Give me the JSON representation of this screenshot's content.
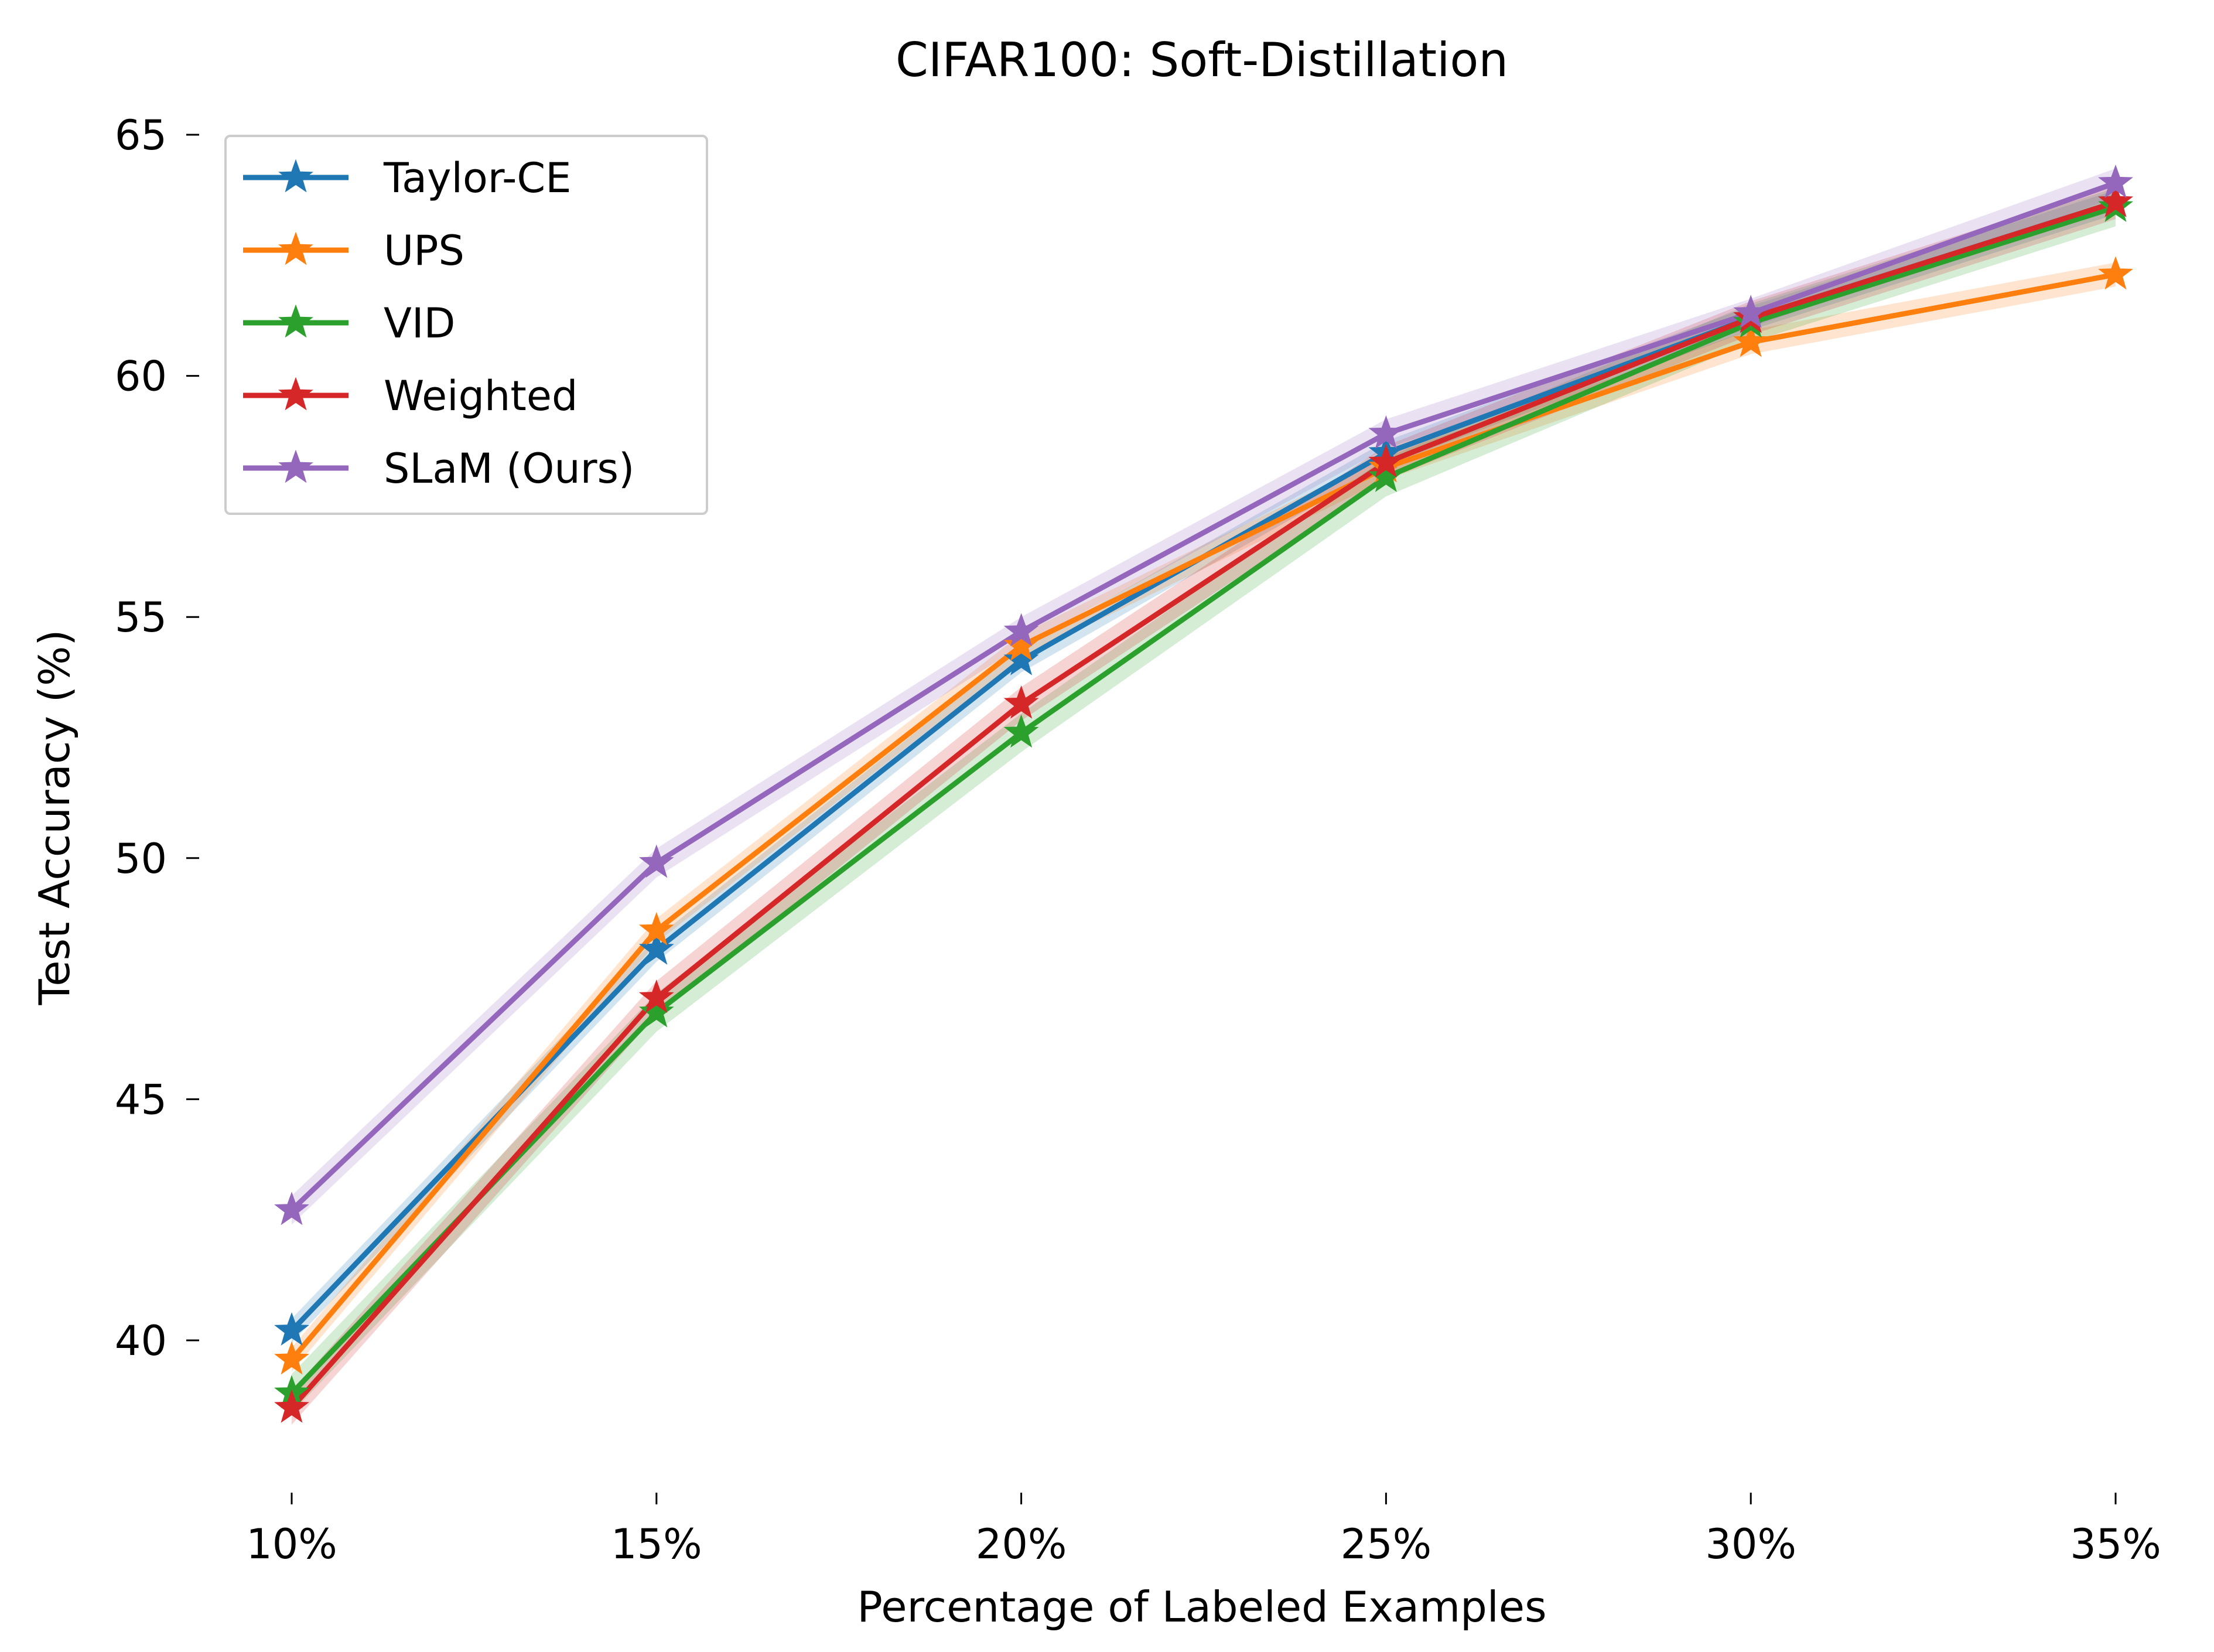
{
  "chart_data": {
    "type": "line",
    "title": "CIFAR100: Soft-Distillation",
    "xlabel": "Percentage of Labeled Examples",
    "ylabel": "Test Accuracy (%)",
    "categories": [
      "10%",
      "15%",
      "20%",
      "25%",
      "30%",
      "35%"
    ],
    "yticks": [
      40,
      45,
      50,
      55,
      60,
      65
    ],
    "ylim": [
      37.0,
      65.7
    ],
    "grid": false,
    "legend_position": "top-left",
    "series": [
      {
        "name": "Taylor-CE",
        "color": "#1f77b4",
        "values": [
          40.2,
          48.1,
          54.1,
          58.4,
          61.2,
          63.6
        ],
        "band": 0.25
      },
      {
        "name": "UPS",
        "color": "#ff7f0e",
        "values": [
          39.6,
          48.5,
          54.4,
          58.1,
          60.7,
          62.1
        ],
        "band": 0.25
      },
      {
        "name": "VID",
        "color": "#2ca02c",
        "values": [
          38.9,
          46.8,
          52.6,
          57.9,
          61.1,
          63.5
        ],
        "band": 0.4
      },
      {
        "name": "Weighted",
        "color": "#d62728",
        "values": [
          38.6,
          47.1,
          53.2,
          58.2,
          61.2,
          63.6
        ],
        "band": 0.35
      },
      {
        "name": "SLaM (Ours)",
        "color": "#9467bd",
        "values": [
          42.7,
          49.9,
          54.7,
          58.8,
          61.3,
          64.0
        ],
        "band": 0.3
      }
    ]
  }
}
